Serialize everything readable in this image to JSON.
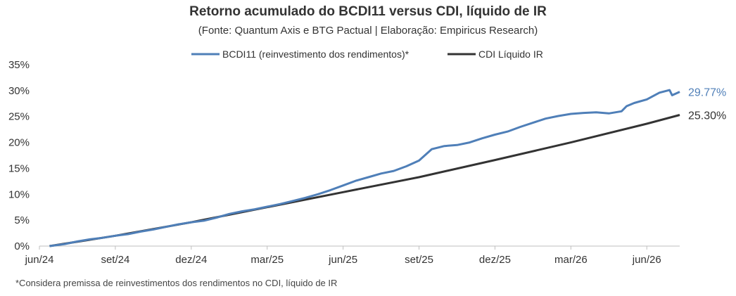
{
  "chart_data": {
    "type": "line",
    "title": "Retorno acumulado do BCDI11 versus CDI, líquido de IR",
    "subtitle": "(Fonte: Quantum Axis e BTG Pactual | Elaboração: Empiricus Research)",
    "footnote": "*Considera premissa de reinvestimentos dos rendimentos no CDI, líquido de IR",
    "legend_position": "top-center",
    "grid": false,
    "ylim": [
      0,
      35
    ],
    "y_ticks": [
      "0%",
      "5%",
      "10%",
      "15%",
      "20%",
      "25%",
      "30%",
      "35%"
    ],
    "x_ticks": [
      "jun/24",
      "set/24",
      "dez/24",
      "mar/25",
      "jun/25",
      "set/25",
      "dez/25",
      "mar/26",
      "jun/26"
    ],
    "x_tick_months": [
      0,
      3,
      6,
      9,
      12,
      15,
      18,
      21,
      24
    ],
    "x_range_months": [
      0,
      25.3
    ],
    "series": [
      {
        "name": "BCDI11 (reinvestimento dos rendimentos)*",
        "color": "#4F7FB8",
        "end_label": "29.77%",
        "points": [
          [
            0.4,
            0.0
          ],
          [
            1.0,
            0.4
          ],
          [
            1.5,
            0.9
          ],
          [
            2.0,
            1.3
          ],
          [
            2.5,
            1.6
          ],
          [
            3.0,
            2.0
          ],
          [
            3.5,
            2.3
          ],
          [
            4.0,
            2.8
          ],
          [
            4.5,
            3.2
          ],
          [
            5.0,
            3.7
          ],
          [
            5.5,
            4.2
          ],
          [
            6.0,
            4.6
          ],
          [
            6.5,
            4.9
          ],
          [
            7.0,
            5.5
          ],
          [
            7.5,
            6.2
          ],
          [
            8.0,
            6.7
          ],
          [
            8.5,
            7.1
          ],
          [
            9.0,
            7.6
          ],
          [
            9.5,
            8.1
          ],
          [
            10.0,
            8.7
          ],
          [
            10.5,
            9.3
          ],
          [
            11.0,
            10.0
          ],
          [
            11.5,
            10.8
          ],
          [
            12.0,
            11.7
          ],
          [
            12.5,
            12.6
          ],
          [
            13.0,
            13.3
          ],
          [
            13.5,
            14.0
          ],
          [
            14.0,
            14.5
          ],
          [
            14.5,
            15.4
          ],
          [
            15.0,
            16.5
          ],
          [
            15.5,
            18.7
          ],
          [
            16.0,
            19.3
          ],
          [
            16.5,
            19.5
          ],
          [
            17.0,
            20.0
          ],
          [
            17.5,
            20.8
          ],
          [
            18.0,
            21.5
          ],
          [
            18.5,
            22.1
          ],
          [
            19.0,
            23.0
          ],
          [
            19.5,
            23.8
          ],
          [
            20.0,
            24.6
          ],
          [
            20.5,
            25.1
          ],
          [
            21.0,
            25.5
          ],
          [
            21.5,
            25.7
          ],
          [
            22.0,
            25.8
          ],
          [
            22.5,
            25.6
          ],
          [
            23.0,
            26.0
          ],
          [
            23.2,
            27.0
          ],
          [
            23.5,
            27.6
          ],
          [
            24.0,
            28.3
          ],
          [
            24.5,
            29.6
          ],
          [
            24.9,
            30.1
          ],
          [
            25.0,
            29.1
          ],
          [
            25.3,
            29.77
          ]
        ]
      },
      {
        "name": "CDI Líquido IR",
        "color": "#333333",
        "end_label": "25.30%",
        "points": [
          [
            0.4,
            0.0
          ],
          [
            3.0,
            2.0
          ],
          [
            6.0,
            4.6
          ],
          [
            9.0,
            7.5
          ],
          [
            12.0,
            10.4
          ],
          [
            15.0,
            13.3
          ],
          [
            18.0,
            16.6
          ],
          [
            21.0,
            20.0
          ],
          [
            24.0,
            23.6
          ],
          [
            25.3,
            25.3
          ]
        ]
      }
    ]
  }
}
